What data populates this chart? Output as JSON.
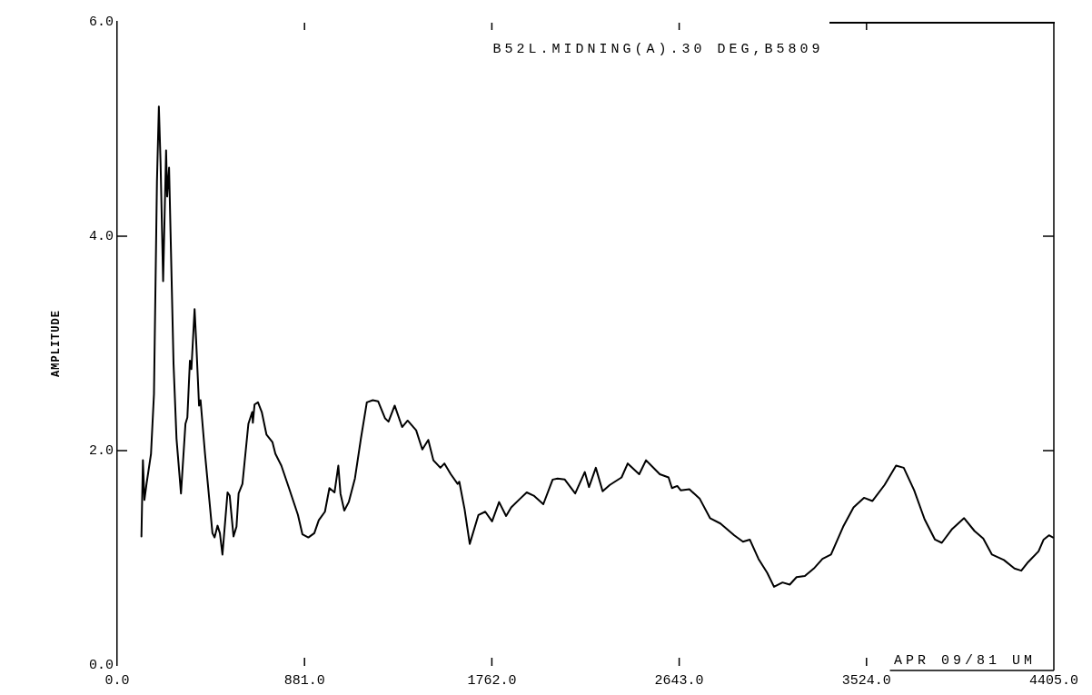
{
  "chart_data": {
    "type": "line",
    "title": "B52L.MIDNING(A).30 DEG,B5809",
    "ylabel": "AMPLITUDE",
    "annotations": [
      "APR 09/81 UM"
    ],
    "color": "#000000",
    "xlim": [
      0,
      4405
    ],
    "ylim": [
      0,
      6
    ],
    "xticks": [
      {
        "value": 0,
        "label": "0.0"
      },
      {
        "value": 881,
        "label": "881.0"
      },
      {
        "value": 1762,
        "label": "1762.0"
      },
      {
        "value": 2643,
        "label": "2643.0"
      },
      {
        "value": 3524,
        "label": "3524.0"
      },
      {
        "value": 4405,
        "label": "4405.0"
      }
    ],
    "yticks": [
      {
        "value": 0,
        "label": "0.0"
      },
      {
        "value": 2,
        "label": "2.0"
      },
      {
        "value": 4,
        "label": "4.0"
      },
      {
        "value": 6,
        "label": "6.0"
      }
    ],
    "x": [
      114,
      121,
      128,
      138,
      159,
      173,
      187,
      196,
      204,
      216,
      230,
      235,
      244,
      265,
      279,
      300,
      321,
      330,
      342,
      349,
      364,
      371,
      385,
      392,
      413,
      448,
      458,
      472,
      483,
      495,
      519,
      529,
      547,
      561,
      571,
      589,
      617,
      635,
      638,
      646,
      662,
      680,
      702,
      730,
      744,
      772,
      808,
      850,
      871,
      899,
      927,
      948,
      977,
      998,
      1022,
      1040,
      1050,
      1068,
      1089,
      1118,
      1146,
      1174,
      1202,
      1227,
      1260,
      1276,
      1305,
      1340,
      1366,
      1406,
      1435,
      1463,
      1487,
      1520,
      1539,
      1569,
      1601,
      1609,
      1634,
      1658,
      1699,
      1731,
      1763,
      1796,
      1829,
      1853,
      1894,
      1926,
      1959,
      2004,
      2048,
      2071,
      2105,
      2154,
      2199,
      2219,
      2251,
      2283,
      2317,
      2372,
      2401,
      2455,
      2487,
      2552,
      2593,
      2609,
      2634,
      2650,
      2691,
      2740,
      2788,
      2837,
      2902,
      2943,
      2975,
      3016,
      3057,
      3089,
      3129,
      3163,
      3195,
      3234,
      3276,
      3317,
      3357,
      3414,
      3463,
      3512,
      3552,
      3609,
      3663,
      3699,
      3748,
      3797,
      3846,
      3878,
      3927,
      3983,
      4032,
      4073,
      4114,
      4170,
      4220,
      4252,
      4284,
      4333,
      4357,
      4382,
      4401
    ],
    "values": [
      1.2,
      1.91,
      1.54,
      1.69,
      1.97,
      2.53,
      4.51,
      5.21,
      4.68,
      3.58,
      4.8,
      4.37,
      4.64,
      2.81,
      2.11,
      1.6,
      2.25,
      2.31,
      2.84,
      2.76,
      3.32,
      3.04,
      2.42,
      2.47,
      1.97,
      1.23,
      1.19,
      1.3,
      1.23,
      1.03,
      1.61,
      1.58,
      1.2,
      1.29,
      1.6,
      1.69,
      2.25,
      2.36,
      2.26,
      2.43,
      2.45,
      2.36,
      2.15,
      2.08,
      1.97,
      1.86,
      1.65,
      1.4,
      1.22,
      1.19,
      1.23,
      1.35,
      1.43,
      1.65,
      1.61,
      1.86,
      1.6,
      1.44,
      1.52,
      1.74,
      2.11,
      2.45,
      2.47,
      2.46,
      2.3,
      2.27,
      2.42,
      2.22,
      2.28,
      2.19,
      2.01,
      2.1,
      1.91,
      1.84,
      1.88,
      1.78,
      1.69,
      1.71,
      1.45,
      1.13,
      1.4,
      1.43,
      1.34,
      1.52,
      1.39,
      1.47,
      1.55,
      1.61,
      1.58,
      1.5,
      1.73,
      1.74,
      1.73,
      1.6,
      1.8,
      1.66,
      1.84,
      1.62,
      1.68,
      1.75,
      1.88,
      1.78,
      1.91,
      1.78,
      1.75,
      1.65,
      1.67,
      1.63,
      1.64,
      1.55,
      1.37,
      1.32,
      1.21,
      1.15,
      1.17,
      0.99,
      0.86,
      0.73,
      0.77,
      0.75,
      0.82,
      0.83,
      0.9,
      0.99,
      1.03,
      1.29,
      1.47,
      1.56,
      1.53,
      1.68,
      1.86,
      1.84,
      1.63,
      1.36,
      1.17,
      1.14,
      1.27,
      1.37,
      1.25,
      1.18,
      1.03,
      0.98,
      0.9,
      0.88,
      0.96,
      1.06,
      1.17,
      1.21,
      1.19
    ]
  }
}
